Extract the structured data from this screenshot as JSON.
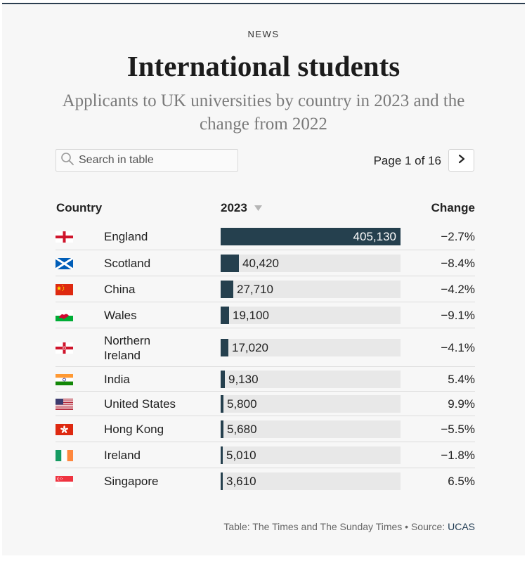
{
  "header": {
    "eyebrow": "NEWS",
    "title": "International students",
    "subtitle": "Applicants to UK universities by country in 2023 and the change from 2022"
  },
  "controls": {
    "search_placeholder": "Search in table",
    "page_label": "Page 1 of 16",
    "next_icon": "chevron-right-icon",
    "search_icon": "search-icon"
  },
  "table": {
    "columns": [
      "Country",
      "2023",
      "Change"
    ],
    "rows": [
      {
        "country": "England",
        "value_label": "405,130",
        "change": "−2.7%",
        "flag": "england"
      },
      {
        "country": "Scotland",
        "value_label": "40,420",
        "change": "−8.4%",
        "flag": "scotland"
      },
      {
        "country": "China",
        "value_label": "27,710",
        "change": "−4.2%",
        "flag": "china"
      },
      {
        "country": "Wales",
        "value_label": "19,100",
        "change": "−9.1%",
        "flag": "wales"
      },
      {
        "country": "Northern Ireland",
        "value_label": "17,020",
        "change": "−4.1%",
        "flag": "northern-ireland"
      },
      {
        "country": "India",
        "value_label": "9,130",
        "change": "5.4%",
        "flag": "india"
      },
      {
        "country": "United States",
        "value_label": "5,800",
        "change": "9.9%",
        "flag": "united-states"
      },
      {
        "country": "Hong Kong",
        "value_label": "5,680",
        "change": "−5.5%",
        "flag": "hong-kong"
      },
      {
        "country": "Ireland",
        "value_label": "5,010",
        "change": "−1.8%",
        "flag": "ireland"
      },
      {
        "country": "Singapore",
        "value_label": "3,610",
        "change": "6.5%",
        "flag": "singapore"
      }
    ]
  },
  "chart_data": {
    "type": "bar",
    "title": "International students",
    "subtitle": "Applicants to UK universities by country in 2023 and the change from 2022",
    "categories": [
      "England",
      "Scotland",
      "China",
      "Wales",
      "Northern Ireland",
      "India",
      "United States",
      "Hong Kong",
      "Ireland",
      "Singapore"
    ],
    "series": [
      {
        "name": "2023",
        "values": [
          405130,
          40420,
          27710,
          19100,
          17020,
          9130,
          5800,
          5680,
          5010,
          3610
        ]
      }
    ],
    "change_pct": [
      -2.7,
      -8.4,
      -4.2,
      -9.1,
      -4.1,
      5.4,
      9.9,
      -5.5,
      -1.8,
      6.5
    ],
    "xlim": [
      0,
      405130
    ],
    "orientation": "horizontal",
    "bar_color": "#25404e",
    "track_color": "#e8e8e8"
  },
  "footer": {
    "prefix": "Table: The Times and The Sunday Times • Source: ",
    "source": "UCAS"
  }
}
